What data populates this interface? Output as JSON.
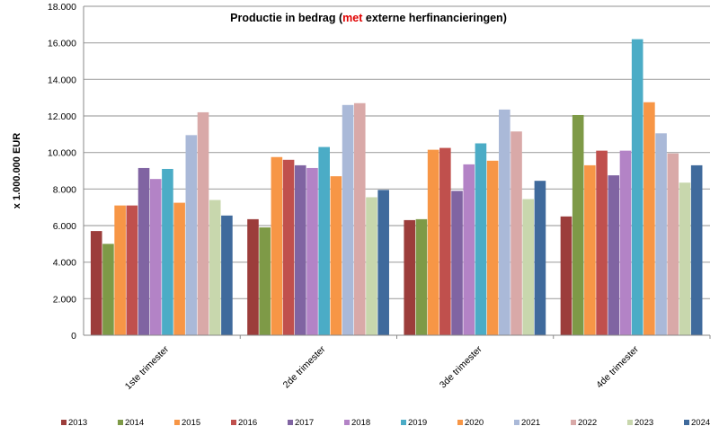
{
  "chart_data": {
    "type": "bar",
    "title_parts": [
      "Productie in bedrag (",
      "met",
      " externe herfinancieringen)"
    ],
    "title_highlight_color": "#e00000",
    "xlabel": "",
    "ylabel": "x 1.000.000 EUR",
    "ylim": [
      0,
      18000
    ],
    "yticks": [
      "0",
      "2.000",
      "4.000",
      "6.000",
      "8.000",
      "10.000",
      "12.000",
      "14.000",
      "16.000",
      "18.000"
    ],
    "grid": true,
    "legend_position": "bottom",
    "categories": [
      "1ste trimester",
      "2de trimester",
      "3de trimester",
      "4de trimester"
    ],
    "series": [
      {
        "name": "2013",
        "color": "#9c3d3b",
        "values": [
          5700,
          6350,
          6300,
          6500
        ]
      },
      {
        "name": "2014",
        "color": "#7e9a47",
        "values": [
          5000,
          5900,
          6350,
          12050
        ]
      },
      {
        "name": "2015",
        "color": "#f79646",
        "values": [
          7100,
          9750,
          10150,
          9300
        ]
      },
      {
        "name": "2016",
        "color": "#c0504d",
        "values": [
          7100,
          9600,
          10250,
          10100
        ]
      },
      {
        "name": "2017",
        "color": "#8064a2",
        "values": [
          9150,
          9300,
          7900,
          8750
        ]
      },
      {
        "name": "2018",
        "color": "#b383c6",
        "values": [
          8550,
          9150,
          9350,
          10100
        ]
      },
      {
        "name": "2019",
        "color": "#4bacc6",
        "values": [
          9100,
          10300,
          10500,
          16200
        ]
      },
      {
        "name": "2020",
        "color": "#f79646",
        "values": [
          7250,
          8700,
          9550,
          12750
        ]
      },
      {
        "name": "2021",
        "color": "#aab9d8",
        "values": [
          10950,
          12600,
          12350,
          11050
        ]
      },
      {
        "name": "2022",
        "color": "#d9a9a8",
        "values": [
          12200,
          12700,
          11150,
          9950
        ]
      },
      {
        "name": "2023",
        "color": "#c8d7ad",
        "values": [
          7400,
          7550,
          7450,
          8350
        ]
      },
      {
        "name": "2024",
        "color": "#3f6a9c",
        "values": [
          6550,
          7950,
          8450,
          9300
        ]
      }
    ]
  }
}
